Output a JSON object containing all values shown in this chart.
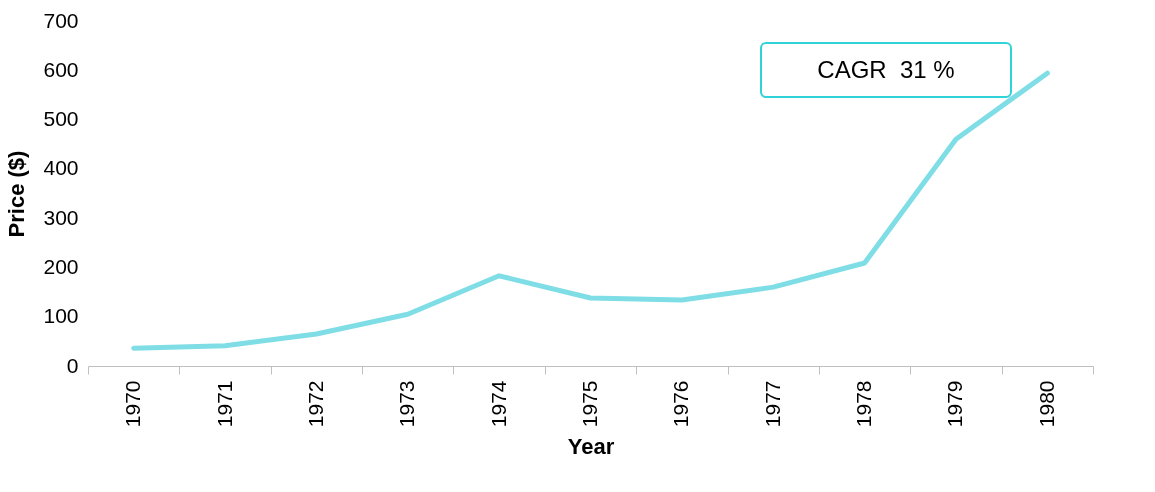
{
  "chart_data": {
    "type": "line",
    "xlabel": "Year",
    "ylabel": "Price ($)",
    "categories": [
      "1970",
      "1971",
      "1972",
      "1973",
      "1974",
      "1975",
      "1976",
      "1977",
      "1978",
      "1979",
      "1980"
    ],
    "series": [
      {
        "color": "#7fdde6",
        "values": [
          36,
          41,
          65,
          105,
          183,
          138,
          134,
          160,
          209,
          460,
          594
        ]
      }
    ],
    "ylim": [
      0,
      700
    ],
    "yticks": [
      0,
      100,
      200,
      300,
      400,
      500,
      600,
      700
    ],
    "grid": false,
    "annotations": [
      "CAGR  31 %"
    ]
  }
}
